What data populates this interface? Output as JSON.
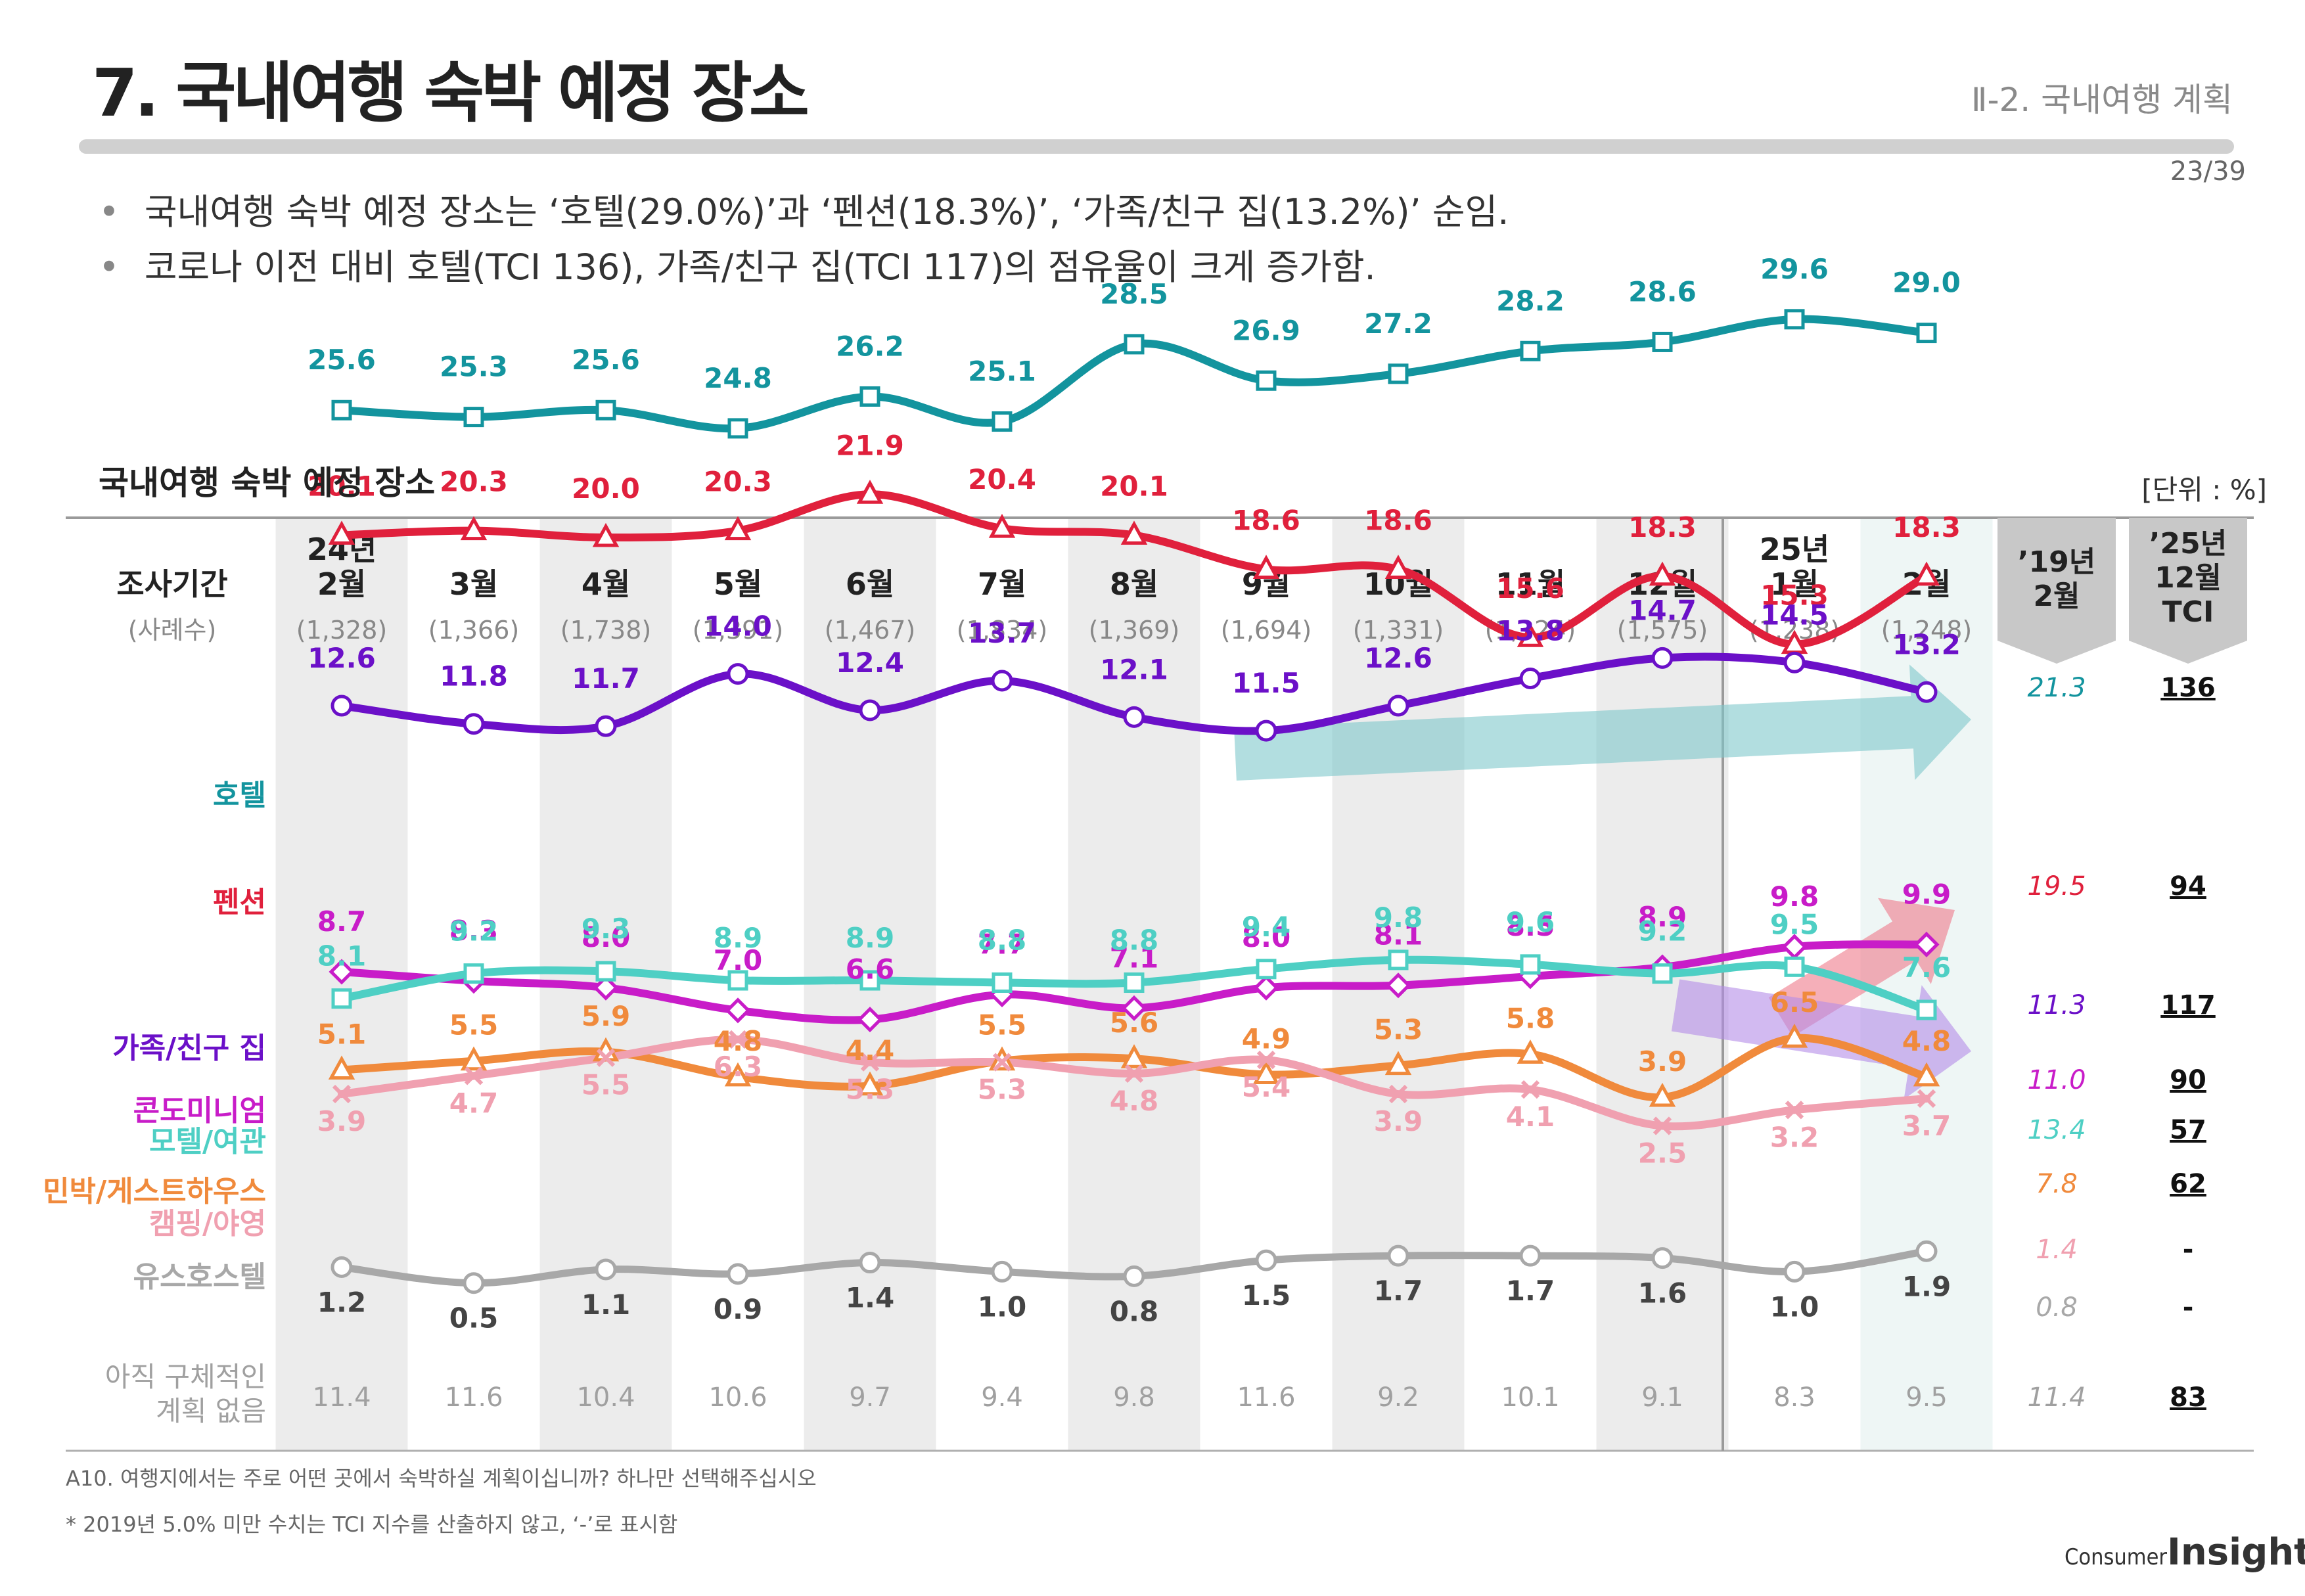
{
  "header": {
    "title": "7. 국내여행 숙박 예정 장소",
    "section": "Ⅱ-2. 국내여행 계획",
    "page_number": "23/39"
  },
  "summary": {
    "bullet_1": "국내여행 숙박 예정 장소는 ‘호텔(29.0%)’과 ‘펜션(18.3%)’, ‘가족/친구 집(13.2%)’ 순임.",
    "bullet_2": "코로나 이전 대비 호텔(TCI 136), 가족/친구 집(TCI 117)의 점유율이 크게 증가함."
  },
  "colors": {
    "hotel": "#13949e",
    "pension": "#e0203c",
    "family": "#6b10c8",
    "condo": "#c81cc8",
    "motel": "#4ecfc4",
    "minbak": "#f08a3c",
    "camping": "#f0a0b0",
    "hostel": "#a8a8a8",
    "undecided": "#b0b0b0",
    "column_shade": "#ececec",
    "latest_shade": "#eef6f5",
    "side_header": "#c8c8c8",
    "arrow_hotel": "#7ec8cc",
    "arrow_pension": "#ee7a8a",
    "arrow_family": "#b48ce8"
  },
  "chart_data": {
    "type": "line",
    "title": "국내여행 숙박 예정 장소",
    "unit": "[단위 : %]",
    "row_header": "조사기간",
    "sample_header": "(사례수)",
    "categories": [
      {
        "year": "24년",
        "month": "2월",
        "n": "(1,328)"
      },
      {
        "month": "3월",
        "n": "(1,366)"
      },
      {
        "month": "4월",
        "n": "(1,738)"
      },
      {
        "month": "5월",
        "n": "(1,391)"
      },
      {
        "month": "6월",
        "n": "(1,467)"
      },
      {
        "month": "7월",
        "n": "(1,834)"
      },
      {
        "month": "8월",
        "n": "(1,369)"
      },
      {
        "month": "9월",
        "n": "(1,694)"
      },
      {
        "month": "10월",
        "n": "(1,331)"
      },
      {
        "month": "11월",
        "n": "(1,324)"
      },
      {
        "month": "12월",
        "n": "(1,575)"
      },
      {
        "year": "25년",
        "month": "1월",
        "n": "(1,238)"
      },
      {
        "month": "2월",
        "n": "(1,248)"
      }
    ],
    "baseline_header": [
      "’19년",
      "2월"
    ],
    "tci_header": [
      "’25년",
      "12월",
      "TCI"
    ],
    "ylim": [
      0,
      32
    ],
    "series": [
      {
        "key": "hotel",
        "name": "호텔",
        "marker": "square",
        "values": [
          25.6,
          25.3,
          25.6,
          24.8,
          26.2,
          25.1,
          28.5,
          26.9,
          27.2,
          28.2,
          28.6,
          29.6,
          29.0
        ],
        "baseline": "21.3",
        "tci": "136"
      },
      {
        "key": "pension",
        "name": "펜션",
        "marker": "triangle",
        "values": [
          20.1,
          20.3,
          20.0,
          20.3,
          21.9,
          20.4,
          20.1,
          18.6,
          18.6,
          15.6,
          18.3,
          15.3,
          18.3
        ],
        "baseline": "19.5",
        "tci": "94"
      },
      {
        "key": "family",
        "name": "가족/친구 집",
        "marker": "circle",
        "values": [
          12.6,
          11.8,
          11.7,
          14.0,
          12.4,
          13.7,
          12.1,
          11.5,
          12.6,
          13.8,
          14.7,
          14.5,
          13.2
        ],
        "baseline": "11.3",
        "tci": "117"
      },
      {
        "key": "condo",
        "name": "콘도미니엄",
        "marker": "diamond",
        "values": [
          8.7,
          8.3,
          8.0,
          7.0,
          6.6,
          7.7,
          7.1,
          8.0,
          8.1,
          8.5,
          8.9,
          9.8,
          9.9
        ],
        "baseline": "11.0",
        "tci": "90"
      },
      {
        "key": "motel",
        "name": "모텔/여관",
        "marker": "square",
        "values": [
          8.1,
          9.2,
          9.3,
          8.9,
          8.9,
          8.8,
          8.8,
          9.4,
          9.8,
          9.6,
          9.2,
          9.5,
          7.6
        ],
        "baseline": "13.4",
        "tci": "57"
      },
      {
        "key": "minbak",
        "name": "민박/게스트하우스",
        "marker": "triangle",
        "values": [
          5.1,
          5.5,
          5.9,
          4.8,
          4.4,
          5.5,
          5.6,
          4.9,
          5.3,
          5.8,
          3.9,
          6.5,
          4.8
        ],
        "baseline": "7.8",
        "tci": "62"
      },
      {
        "key": "camping",
        "name": "캠핑/야영",
        "marker": "cross",
        "values": [
          3.9,
          4.7,
          5.5,
          6.3,
          5.3,
          5.3,
          4.8,
          5.4,
          3.9,
          4.1,
          2.5,
          3.2,
          3.7
        ],
        "baseline": "1.4",
        "tci": "-"
      },
      {
        "key": "hostel",
        "name": "유스호스텔",
        "marker": "circle",
        "values": [
          1.2,
          0.5,
          1.1,
          0.9,
          1.4,
          1.0,
          0.8,
          1.5,
          1.7,
          1.7,
          1.6,
          1.0,
          1.9
        ],
        "baseline": "0.8",
        "tci": "-"
      }
    ],
    "undecided": {
      "name": [
        "아직 구체적인",
        "계획 없음"
      ],
      "values": [
        11.4,
        11.6,
        10.4,
        10.6,
        9.7,
        9.4,
        9.8,
        11.6,
        9.2,
        10.1,
        9.1,
        8.3,
        9.5
      ],
      "baseline": "11.4",
      "tci": "83"
    }
  },
  "footnotes": {
    "question": "A10. 여행지에서는 주로 어떤 곳에서 숙박하실 계획이십니까? 하나만 선택해주십시오",
    "note": "* 2019년 5.0% 미만 수치는 TCI 지수를 산출하지 않고, ‘-’로 표시함"
  },
  "logo": {
    "word1": "Consumer",
    "word2": "Insight"
  }
}
